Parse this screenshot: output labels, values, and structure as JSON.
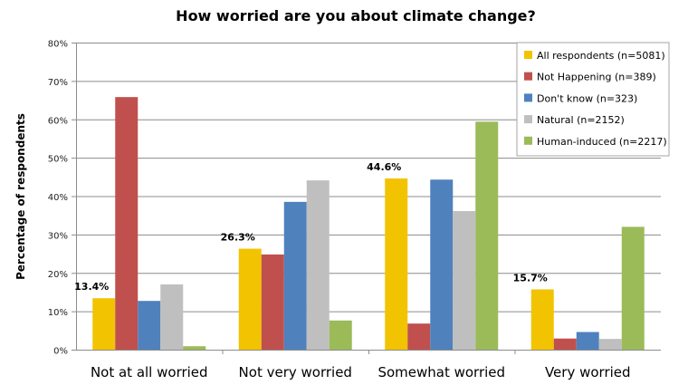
{
  "chart_data": {
    "type": "bar",
    "title": "How worried are you about climate change?",
    "ylabel": "Percentage of respondents",
    "xlabel": "",
    "ylim": [
      0,
      80
    ],
    "yticks": [
      0,
      10,
      20,
      30,
      40,
      50,
      60,
      70,
      80
    ],
    "ytick_format": "{v}%",
    "grid": true,
    "legend_position": "top-right",
    "categories": [
      "Not at all worried",
      "Not very worried",
      "Somewhat worried",
      "Very worried"
    ],
    "series": [
      {
        "name": "All respondents (n=5081)",
        "color": "#F2C300",
        "values": [
          13.4,
          26.3,
          44.6,
          15.7
        ],
        "labels": [
          "13.4%",
          "26.3%",
          "44.6%",
          "15.7%"
        ]
      },
      {
        "name": "Not Happening (n=389)",
        "color": "#C0504D",
        "values": [
          65.8,
          24.8,
          6.8,
          2.9
        ]
      },
      {
        "name": "Don't know (n=323)",
        "color": "#4F81BD",
        "values": [
          12.7,
          38.5,
          44.3,
          4.6
        ]
      },
      {
        "name": "Natural (n=2152)",
        "color": "#BFBFBF",
        "values": [
          17.0,
          44.1,
          36.1,
          2.8
        ]
      },
      {
        "name": "Human-induced (n=2217)",
        "color": "#9BBB59",
        "values": [
          0.9,
          7.6,
          59.4,
          32.0
        ]
      }
    ]
  }
}
